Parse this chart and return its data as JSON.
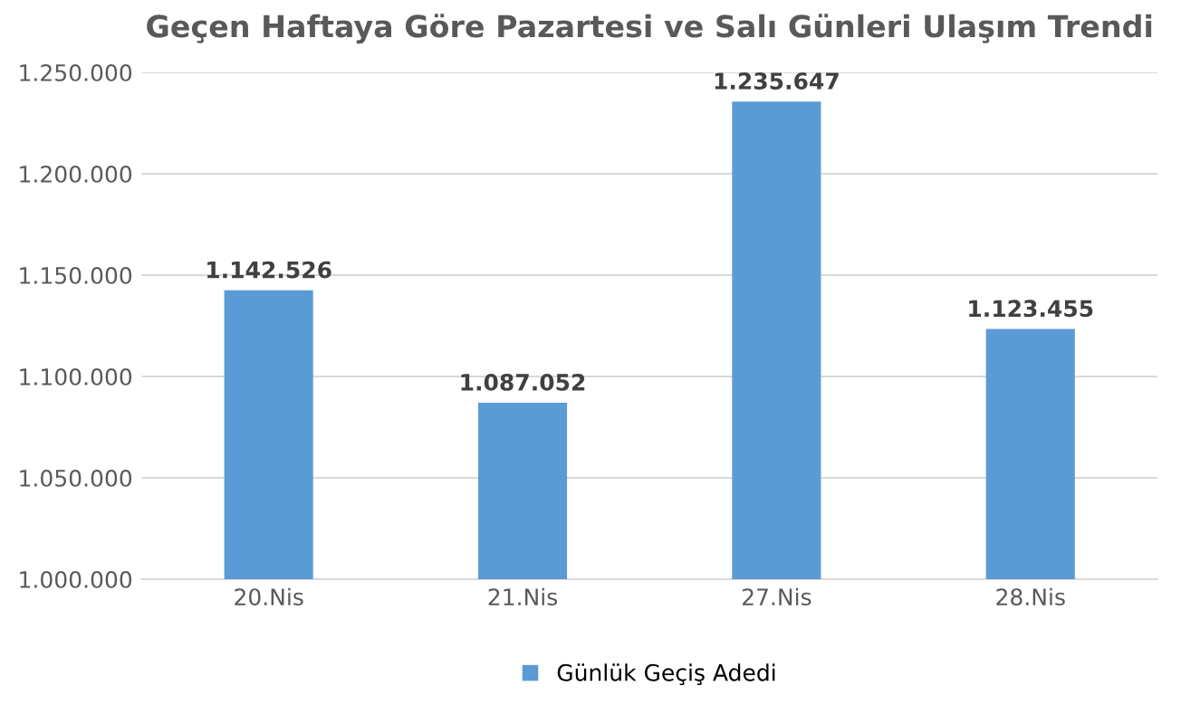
{
  "chart_data": {
    "type": "bar",
    "title": "Geçen Haftaya Göre Pazartesi ve Salı Günleri Ulaşım Trendi",
    "categories": [
      "20.Nis",
      "21.Nis",
      "27.Nis",
      "28.Nis"
    ],
    "series": [
      {
        "name": "Günlük Geçiş Adedi",
        "color": "#5b9bd5",
        "values": [
          1142526,
          1087052,
          1235647,
          1123455
        ],
        "value_labels": [
          "1.142.526",
          "1.087.052",
          "1.235.647",
          "1.123.455"
        ]
      }
    ],
    "ylim": [
      1000000,
      1250000
    ],
    "yticks": [
      {
        "value": 1000000,
        "label": "1.000.000"
      },
      {
        "value": 1050000,
        "label": "1.050.000"
      },
      {
        "value": 1100000,
        "label": "1.100.000"
      },
      {
        "value": 1150000,
        "label": "1.150.000"
      },
      {
        "value": 1200000,
        "label": "1.200.000"
      },
      {
        "value": 1250000,
        "label": "1.250.000"
      }
    ],
    "grid": "y",
    "legend": "bottom"
  }
}
